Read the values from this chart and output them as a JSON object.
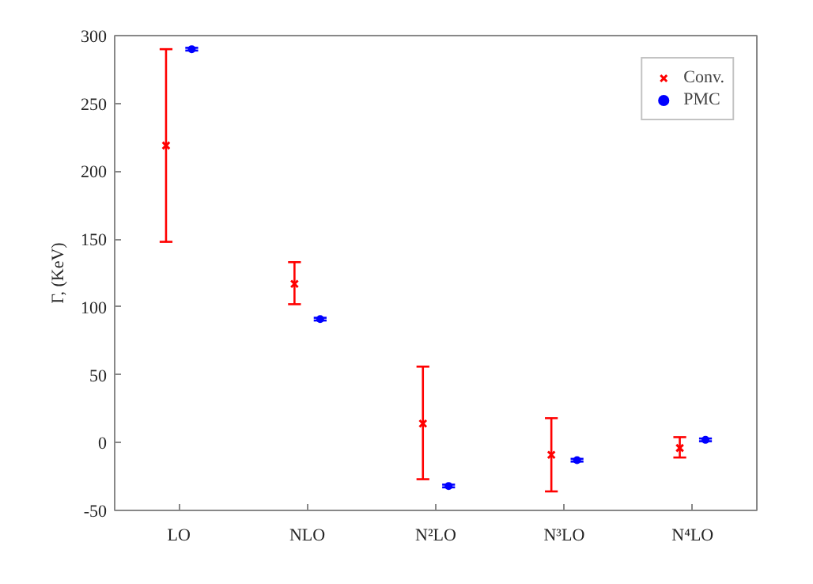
{
  "chart_data": {
    "type": "scatter",
    "ylabel": "Γ, (KeV)",
    "categories": [
      "LO",
      "NLO",
      "N²LO",
      "N³LO",
      "N⁴LO"
    ],
    "series": [
      {
        "name": "Conv.",
        "color": "#ff0000",
        "marker": "cross",
        "values": [
          219,
          117,
          14,
          -9,
          -4
        ],
        "errors": [
          [
            148,
            290
          ],
          [
            102,
            133
          ],
          [
            -27,
            56
          ],
          [
            -36,
            18
          ],
          [
            -11,
            4
          ]
        ]
      },
      {
        "name": "PMC",
        "color": "#0000ff",
        "marker": "circle",
        "values": [
          290,
          91,
          -32,
          -13,
          2
        ],
        "errors": [
          1,
          1,
          1,
          1,
          1
        ]
      }
    ],
    "ylim": [
      -50,
      300
    ],
    "yticks": [
      -50,
      0,
      50,
      100,
      150,
      200,
      250,
      300
    ],
    "legend": "top right",
    "grid": false
  }
}
